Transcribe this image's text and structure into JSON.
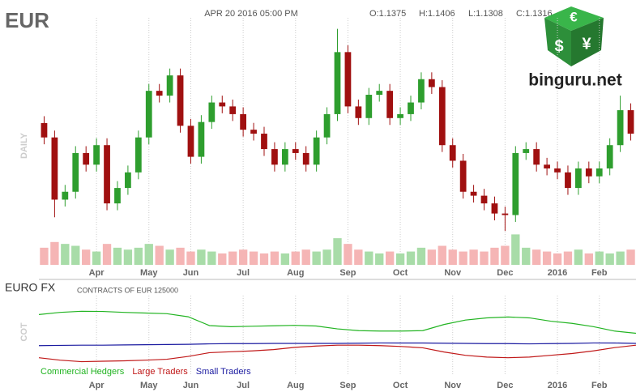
{
  "header": {
    "symbol": "EUR",
    "datetime": "APR 20 2016 05:00 PM",
    "open": "O:1.1375",
    "high": "H:1.1406",
    "low": "L:1.1308",
    "close": "C:1.1316",
    "period": "DAILY"
  },
  "logo": {
    "text": "binguru.net",
    "symbols": [
      "€",
      "$",
      "¥"
    ]
  },
  "chart_data": [
    {
      "type": "candlestick",
      "up_color": "#2e9e2e",
      "down_color": "#a01010",
      "open": [
        1.115,
        1.1066,
        1.0703,
        1.0749,
        1.0975,
        1.0907,
        1.1021,
        1.0681,
        1.0771,
        1.0862,
        1.1066,
        1.1338,
        1.131,
        1.1428,
        1.1134,
        1.0953,
        1.1156,
        1.127,
        1.1247,
        1.1202,
        1.1111,
        1.1088,
        1.0998,
        1.0907,
        1.0998,
        1.0975,
        1.0907,
        1.1066,
        1.1202,
        1.1564,
        1.1247,
        1.1179,
        1.1315,
        1.1338,
        1.1179,
        1.1202,
        1.127,
        1.1406,
        1.136,
        1.1021,
        1.093,
        1.0749,
        1.0726,
        1.0681,
        1.0622,
        1.0613,
        1.0975,
        1.0998,
        1.0907,
        1.0885,
        1.0862,
        1.0771,
        1.0885,
        1.0839,
        1.0885,
        1.1021,
        1.1225
      ],
      "high": [
        1.119,
        1.1106,
        1.0789,
        1.1015,
        1.1015,
        1.1061,
        1.1061,
        1.0811,
        1.0902,
        1.1106,
        1.1378,
        1.1378,
        1.1468,
        1.1468,
        1.1174,
        1.1196,
        1.131,
        1.131,
        1.1287,
        1.1242,
        1.1151,
        1.1128,
        1.1038,
        1.1038,
        1.1038,
        1.1015,
        1.1106,
        1.1242,
        1.17,
        1.1604,
        1.1287,
        1.1355,
        1.1378,
        1.1378,
        1.1242,
        1.131,
        1.1446,
        1.1446,
        1.14,
        1.1061,
        1.097,
        1.0789,
        1.0766,
        1.0721,
        1.0662,
        1.1015,
        1.1038,
        1.1038,
        1.0947,
        1.0925,
        1.0902,
        1.0925,
        1.0925,
        1.0925,
        1.1061,
        1.131,
        1.1265
      ],
      "low": [
        1.1026,
        1.06,
        1.0663,
        1.0709,
        1.0867,
        1.0867,
        1.0641,
        1.0641,
        1.0731,
        1.0822,
        1.1026,
        1.127,
        1.127,
        1.1094,
        1.0913,
        1.0913,
        1.1116,
        1.1207,
        1.1162,
        1.1071,
        1.1048,
        1.0958,
        1.0867,
        1.0867,
        1.0935,
        1.0867,
        1.0867,
        1.1026,
        1.1162,
        1.1207,
        1.1139,
        1.1139,
        1.1275,
        1.1139,
        1.1139,
        1.1162,
        1.123,
        1.132,
        1.0981,
        1.089,
        1.0709,
        1.0686,
        1.0641,
        1.0582,
        1.052,
        1.0573,
        1.0935,
        1.0867,
        1.0845,
        1.0822,
        1.0731,
        1.0731,
        1.0799,
        1.0799,
        1.0845,
        1.0981,
        1.1048
      ],
      "close": [
        1.1066,
        1.0703,
        1.0749,
        1.0975,
        1.0907,
        1.1021,
        1.0681,
        1.0771,
        1.0862,
        1.1066,
        1.1338,
        1.131,
        1.1428,
        1.1134,
        1.0953,
        1.1156,
        1.127,
        1.1247,
        1.1202,
        1.1111,
        1.1088,
        1.0998,
        1.0907,
        1.0998,
        1.0975,
        1.0907,
        1.1066,
        1.1202,
        1.1564,
        1.1247,
        1.1179,
        1.1315,
        1.1338,
        1.1179,
        1.1202,
        1.127,
        1.1406,
        1.136,
        1.1021,
        1.093,
        1.0749,
        1.0726,
        1.0681,
        1.0622,
        1.0613,
        1.0975,
        1.0998,
        1.0907,
        1.0885,
        1.0862,
        1.0771,
        1.0885,
        1.0839,
        1.0885,
        1.1021,
        1.1225,
        1.1088
      ],
      "volume": [
        45,
        60,
        55,
        50,
        40,
        35,
        55,
        45,
        40,
        45,
        55,
        50,
        40,
        45,
        35,
        40,
        35,
        30,
        35,
        40,
        35,
        30,
        35,
        30,
        35,
        40,
        35,
        40,
        70,
        55,
        40,
        35,
        30,
        35,
        30,
        35,
        45,
        40,
        50,
        40,
        35,
        40,
        35,
        45,
        50,
        80,
        45,
        40,
        35,
        30,
        35,
        40,
        30,
        35,
        30,
        35,
        40
      ],
      "volume_up_color": "#a8dca8",
      "volume_down_color": "#f5b5b5",
      "ylim": [
        1.045,
        1.175
      ],
      "volume_ylim": [
        0,
        100
      ],
      "xlim": [
        -0.5,
        56.5
      ],
      "xticks": [
        {
          "value": 5,
          "label": "Apr"
        },
        {
          "value": 10,
          "label": "May"
        },
        {
          "value": 14,
          "label": "Jun"
        },
        {
          "value": 19,
          "label": "Jul"
        },
        {
          "value": 24,
          "label": "Aug"
        },
        {
          "value": 29,
          "label": "Sep"
        },
        {
          "value": 34,
          "label": "Oct"
        },
        {
          "value": 39,
          "label": "Nov"
        },
        {
          "value": 44,
          "label": "Dec"
        },
        {
          "value": 49,
          "label": "2016"
        },
        {
          "value": 53,
          "label": "Feb"
        }
      ]
    },
    {
      "type": "line",
      "title": "EURO FX",
      "subtitle": "CONTRACTS OF EUR 125000",
      "ylabel": "COT",
      "ylim": [
        -160,
        160
      ],
      "series": [
        {
          "name": "Commercial Hedgers",
          "color": "#22b422",
          "values": [
            85,
            95,
            100,
            99,
            95,
            92,
            89,
            75,
            35,
            30,
            32,
            34,
            36,
            33,
            20,
            12,
            10,
            10,
            12,
            40,
            60,
            70,
            74,
            70,
            55,
            45,
            30,
            10,
            0
          ]
        },
        {
          "name": "Large Traders",
          "color": "#c01818",
          "values": [
            -111,
            -122,
            -129,
            -127,
            -125,
            -122,
            -118,
            -105,
            -88,
            -84,
            -80,
            -74,
            -64,
            -58,
            -54,
            -54,
            -56,
            -60,
            -66,
            -85,
            -100,
            -108,
            -111,
            -108,
            -100,
            -92,
            -80,
            -65,
            -54
          ]
        },
        {
          "name": "Small Traders",
          "color": "#1a1aa0",
          "values": [
            -56,
            -55,
            -54,
            -54,
            -53,
            -52,
            -51,
            -50,
            -48,
            -47,
            -47,
            -46,
            -46,
            -46,
            -46,
            -45,
            -44,
            -44,
            -44,
            -45,
            -46,
            -47,
            -47,
            -48,
            -47,
            -46,
            -44,
            -44,
            -46
          ]
        }
      ]
    }
  ]
}
